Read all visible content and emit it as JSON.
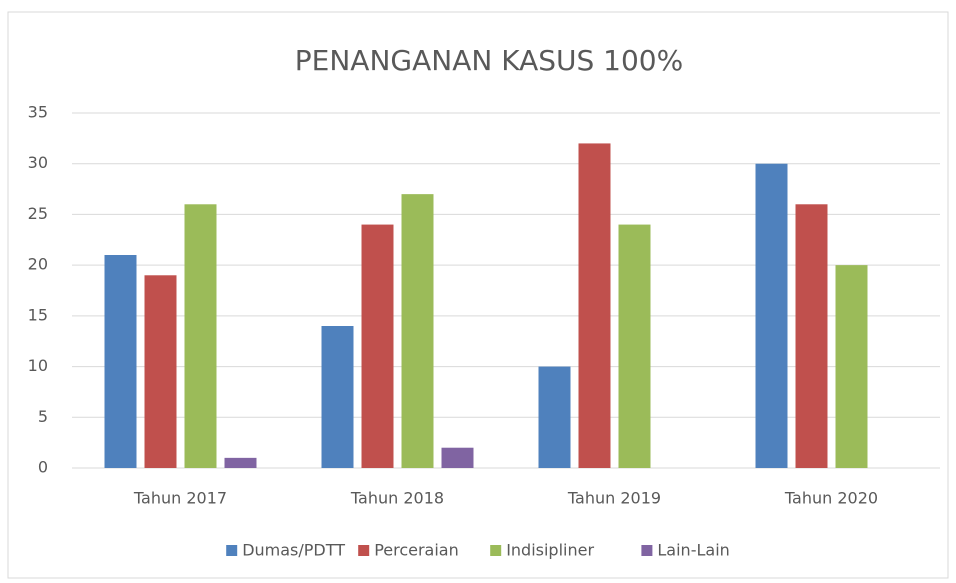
{
  "chart_data": {
    "type": "bar",
    "title": "PENANGANAN KASUS 100%",
    "categories": [
      "Tahun 2017",
      "Tahun 2018",
      "Tahun 2019",
      "Tahun 2020"
    ],
    "series": [
      {
        "name": "Dumas/PDTT",
        "color": "#4f81bd",
        "values": [
          21,
          14,
          10,
          30
        ]
      },
      {
        "name": "Perceraian",
        "color": "#c0504d",
        "values": [
          19,
          24,
          32,
          26
        ]
      },
      {
        "name": "Indisipliner",
        "color": "#9bbb59",
        "values": [
          26,
          27,
          24,
          20
        ]
      },
      {
        "name": "Lain-Lain",
        "color": "#8064a2",
        "values": [
          1,
          2,
          0,
          0
        ]
      }
    ],
    "ylim": [
      0,
      35
    ],
    "yticks": [
      0,
      5,
      10,
      15,
      20,
      25,
      30,
      35
    ],
    "grid": true,
    "legend": "bottom"
  }
}
